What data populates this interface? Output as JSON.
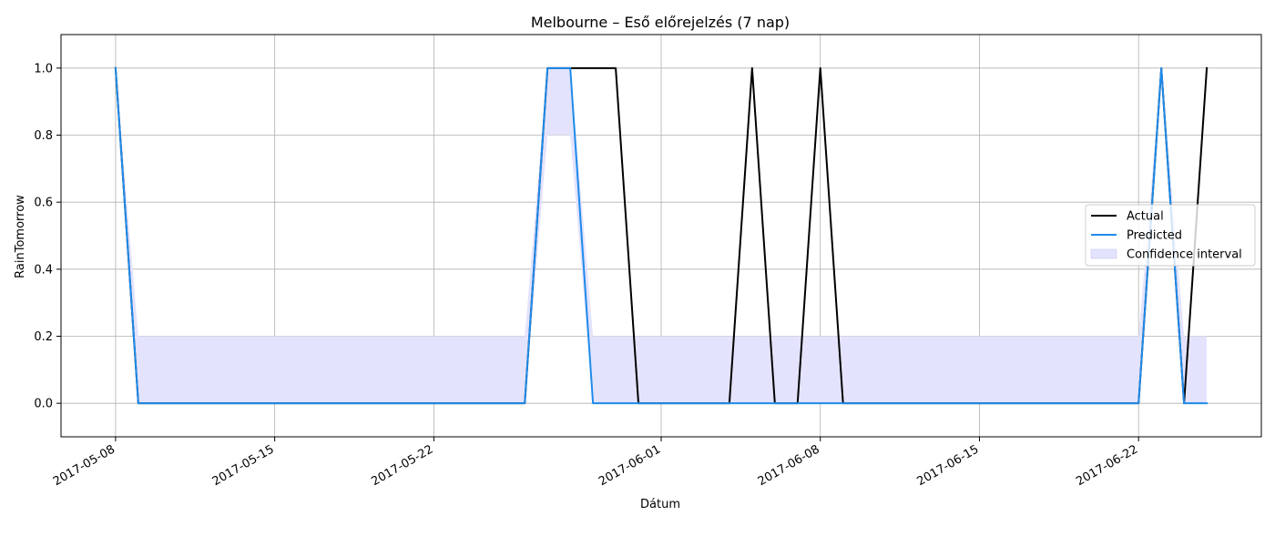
{
  "chart_data": {
    "type": "line",
    "title": "Melbourne – Eső előrejelzés (7 nap)",
    "xlabel": "Dátum",
    "ylabel": "RainTomorrow",
    "xlim": [
      "2017-05-05.6",
      "2017-06-27.4"
    ],
    "ylim": [
      -0.1,
      1.1
    ],
    "grid": true,
    "legend_position": "center-right",
    "x_ticks": [
      "2017-05-08",
      "2017-05-15",
      "2017-05-22",
      "2017-06-01",
      "2017-06-08",
      "2017-06-15",
      "2017-06-22"
    ],
    "y_ticks": [
      "0.0",
      "0.2",
      "0.4",
      "0.6",
      "0.8",
      "1.0"
    ],
    "y_tick_values": [
      0.0,
      0.2,
      0.4,
      0.6,
      0.8,
      1.0
    ],
    "dates": [
      "2017-05-08",
      "2017-05-09",
      "2017-05-10",
      "2017-05-11",
      "2017-05-12",
      "2017-05-13",
      "2017-05-14",
      "2017-05-15",
      "2017-05-16",
      "2017-05-17",
      "2017-05-18",
      "2017-05-19",
      "2017-05-20",
      "2017-05-21",
      "2017-05-22",
      "2017-05-23",
      "2017-05-24",
      "2017-05-25",
      "2017-05-26",
      "2017-05-27",
      "2017-05-28",
      "2017-05-29",
      "2017-05-30",
      "2017-05-31",
      "2017-06-01",
      "2017-06-02",
      "2017-06-03",
      "2017-06-04",
      "2017-06-05",
      "2017-06-06",
      "2017-06-07",
      "2017-06-08",
      "2017-06-09",
      "2017-06-10",
      "2017-06-11",
      "2017-06-12",
      "2017-06-13",
      "2017-06-14",
      "2017-06-15",
      "2017-06-16",
      "2017-06-17",
      "2017-06-18",
      "2017-06-19",
      "2017-06-20",
      "2017-06-21",
      "2017-06-22",
      "2017-06-23",
      "2017-06-24",
      "2017-06-25"
    ],
    "series": [
      {
        "name": "Actual",
        "color": "#000000",
        "values": [
          1,
          0,
          0,
          0,
          0,
          0,
          0,
          0,
          0,
          0,
          0,
          0,
          0,
          0,
          0,
          0,
          0,
          0,
          0,
          1,
          1,
          1,
          1,
          0,
          0,
          0,
          0,
          0,
          1,
          0,
          0,
          1,
          0,
          0,
          0,
          0,
          0,
          0,
          0,
          0,
          0,
          0,
          0,
          0,
          0,
          0,
          1,
          0,
          1
        ]
      },
      {
        "name": "Predicted",
        "color": "#1f8bea",
        "values": [
          1,
          0,
          0,
          0,
          0,
          0,
          0,
          0,
          0,
          0,
          0,
          0,
          0,
          0,
          0,
          0,
          0,
          0,
          0,
          1,
          1,
          0,
          0,
          0,
          0,
          0,
          0,
          0,
          0,
          0,
          0,
          0,
          0,
          0,
          0,
          0,
          0,
          0,
          0,
          0,
          0,
          0,
          0,
          0,
          0,
          0,
          1,
          0,
          0
        ]
      }
    ],
    "confidence_interval": {
      "name": "Confidence interval",
      "color": "#e3e3fd",
      "lower": [
        1,
        0,
        0,
        0,
        0,
        0,
        0,
        0,
        0,
        0,
        0,
        0,
        0,
        0,
        0,
        0,
        0,
        0,
        0,
        0.8,
        0.8,
        0,
        0,
        0,
        0,
        0,
        0,
        0,
        0,
        0,
        0,
        0,
        0,
        0,
        0,
        0,
        0,
        0,
        0,
        0,
        0,
        0,
        0,
        0,
        0,
        0,
        1,
        0,
        0
      ],
      "upper": [
        1,
        0.2,
        0.2,
        0.2,
        0.2,
        0.2,
        0.2,
        0.2,
        0.2,
        0.2,
        0.2,
        0.2,
        0.2,
        0.2,
        0.2,
        0.2,
        0.2,
        0.2,
        0.2,
        1,
        1,
        0.2,
        0.2,
        0.2,
        0.2,
        0.2,
        0.2,
        0.2,
        0.2,
        0.2,
        0.2,
        0.2,
        0.2,
        0.2,
        0.2,
        0.2,
        0.2,
        0.2,
        0.2,
        0.2,
        0.2,
        0.2,
        0.2,
        0.2,
        0.2,
        0.2,
        1,
        0.2,
        0.2
      ]
    }
  }
}
